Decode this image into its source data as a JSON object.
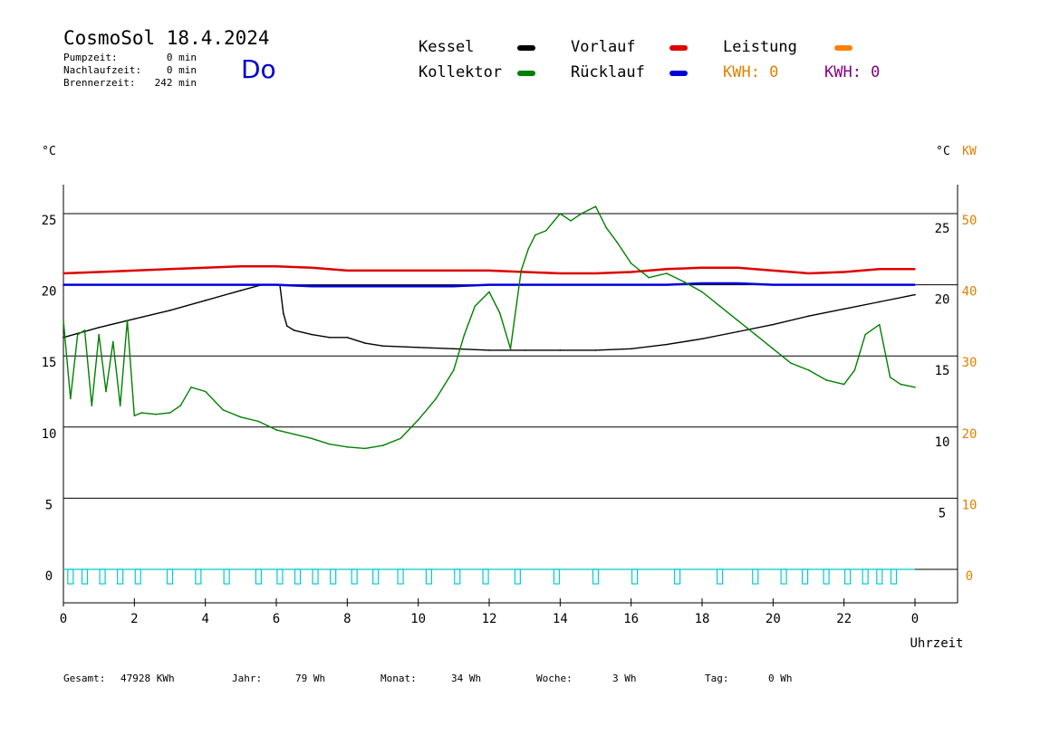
{
  "header": {
    "title": "CosmoSol 18.4.2024",
    "day": "Do",
    "stats": [
      {
        "label": "Pumpzeit:",
        "value": "0 min"
      },
      {
        "label": "Nachlaufzeit:",
        "value": "0 min"
      },
      {
        "label": "Brennerzeit:",
        "value": "242 min"
      }
    ]
  },
  "legend": {
    "kessel": {
      "label": "Kessel",
      "color": "#000000"
    },
    "kollektor": {
      "label": "Kollektor",
      "color": "#008000"
    },
    "vorlauf": {
      "label": "Vorlauf",
      "color": "#e00000"
    },
    "ruecklauf": {
      "label": "Rücklauf",
      "color": "#0000dd"
    },
    "leistung": {
      "label": "Leistung",
      "color": "#ff8000"
    },
    "kwh_orange": "KWH: 0",
    "kwh_purple": "KWH: 0",
    "kwh_orange_color": "#e08000",
    "kwh_purple_color": "#800080"
  },
  "footer": [
    {
      "label": "Gesamt:",
      "value": "47928 KWh"
    },
    {
      "label": "Jahr:",
      "value": "79 Wh"
    },
    {
      "label": "Monat:",
      "value": "34 Wh"
    },
    {
      "label": "Woche:",
      "value": "3 Wh"
    },
    {
      "label": "Tag:",
      "value": "0 Wh"
    }
  ],
  "chart_data": {
    "type": "line",
    "xlabel": "Uhrzeit",
    "ylabel_left": "°C",
    "ylabel_right_1": "°C",
    "ylabel_right_2": "KW",
    "x_ticks": [
      "0",
      "2",
      "4",
      "6",
      "8",
      "10",
      "12",
      "14",
      "16",
      "18",
      "20",
      "22",
      "0"
    ],
    "xlim": [
      0,
      24
    ],
    "ylim": [
      -3,
      27
    ],
    "y_ticks_left": [
      "0",
      "5",
      "10",
      "15",
      "20",
      "25"
    ],
    "y_ticks_right_temp": [
      "5",
      "10",
      "15",
      "20",
      "25"
    ],
    "y_ticks_right_kw": [
      "0",
      "10",
      "20",
      "30",
      "40",
      "50"
    ],
    "grid": "horizontal",
    "series": [
      {
        "name": "Kessel",
        "color": "#000000",
        "x": [
          0,
          1,
          2,
          3,
          4,
          5,
          5.6,
          6.1,
          6.2,
          6.3,
          6.5,
          7,
          7.5,
          8,
          8.5,
          9,
          10,
          11,
          12,
          13,
          14,
          15,
          16,
          17,
          18,
          19,
          20,
          21,
          22,
          23,
          24
        ],
        "y": [
          16.3,
          17,
          17.6,
          18.2,
          18.9,
          19.6,
          20.0,
          20.0,
          18.0,
          17.1,
          16.8,
          16.5,
          16.3,
          16.3,
          15.9,
          15.7,
          15.6,
          15.5,
          15.4,
          15.4,
          15.4,
          15.4,
          15.5,
          15.8,
          16.2,
          16.7,
          17.2,
          17.8,
          18.3,
          18.8,
          19.3
        ]
      },
      {
        "name": "Vorlauf",
        "color": "#dd0000",
        "x": [
          0,
          1,
          2,
          3,
          4,
          5,
          6,
          7,
          8,
          9,
          10,
          11,
          12,
          13,
          14,
          15,
          16,
          17,
          18,
          19,
          20,
          21,
          22,
          23,
          24
        ],
        "y": [
          20.8,
          20.9,
          21.0,
          21.1,
          21.2,
          21.3,
          21.3,
          21.2,
          21.0,
          21.0,
          21.0,
          21.0,
          21.0,
          20.9,
          20.8,
          20.8,
          20.9,
          21.1,
          21.2,
          21.2,
          21.0,
          20.8,
          20.9,
          21.1,
          21.1
        ]
      },
      {
        "name": "Rücklauf",
        "color": "#0000dd",
        "x": [
          0,
          1,
          2,
          3,
          4,
          5,
          6,
          7,
          8,
          9,
          10,
          11,
          12,
          13,
          14,
          15,
          16,
          17,
          18,
          19,
          20,
          21,
          22,
          23,
          24
        ],
        "y": [
          20.0,
          20.0,
          20.0,
          20.0,
          20.0,
          20.0,
          20.0,
          19.9,
          19.9,
          19.9,
          19.9,
          19.9,
          20.0,
          20.0,
          20.0,
          20.0,
          20.0,
          20.0,
          20.1,
          20.1,
          20.0,
          20.0,
          20.0,
          20.0,
          20.0
        ]
      },
      {
        "name": "Kollektor",
        "color": "#008000",
        "x": [
          0,
          0.2,
          0.4,
          0.6,
          0.8,
          1,
          1.2,
          1.4,
          1.6,
          1.8,
          2,
          2.2,
          2.6,
          3,
          3.3,
          3.6,
          4,
          4.5,
          5,
          5.5,
          6,
          6.5,
          7,
          7.5,
          8,
          8.5,
          9,
          9.5,
          10,
          10.5,
          11,
          11.3,
          11.6,
          12,
          12.3,
          12.6,
          12.9,
          13.1,
          13.3,
          13.6,
          14,
          14.3,
          14.6,
          15,
          15.3,
          15.6,
          16,
          16.5,
          17,
          17.5,
          18,
          18.5,
          19,
          19.5,
          20,
          20.5,
          21,
          21.5,
          22,
          22.3,
          22.6,
          23,
          23.3,
          23.6,
          24
        ],
        "y": [
          17.5,
          12.0,
          16.5,
          16.8,
          11.5,
          16.5,
          12.5,
          16.0,
          11.5,
          17.5,
          10.8,
          11.0,
          10.9,
          11.0,
          11.5,
          12.8,
          12.5,
          11.2,
          10.7,
          10.4,
          9.8,
          9.5,
          9.2,
          8.8,
          8.6,
          8.5,
          8.7,
          9.2,
          10.5,
          12.0,
          14.0,
          16.5,
          18.5,
          19.5,
          18.0,
          15.5,
          21.0,
          22.5,
          23.5,
          23.8,
          25.0,
          24.5,
          25.0,
          25.5,
          24.0,
          23.0,
          21.5,
          20.5,
          20.8,
          20.2,
          19.5,
          18.5,
          17.5,
          16.5,
          15.5,
          14.5,
          14.0,
          13.3,
          13.0,
          14.0,
          16.5,
          17.2,
          13.5,
          13.0,
          12.8
        ]
      },
      {
        "name": "Leistung",
        "color": "#00cccc",
        "x": [
          0,
          24
        ],
        "y": [
          0,
          0
        ]
      }
    ]
  }
}
